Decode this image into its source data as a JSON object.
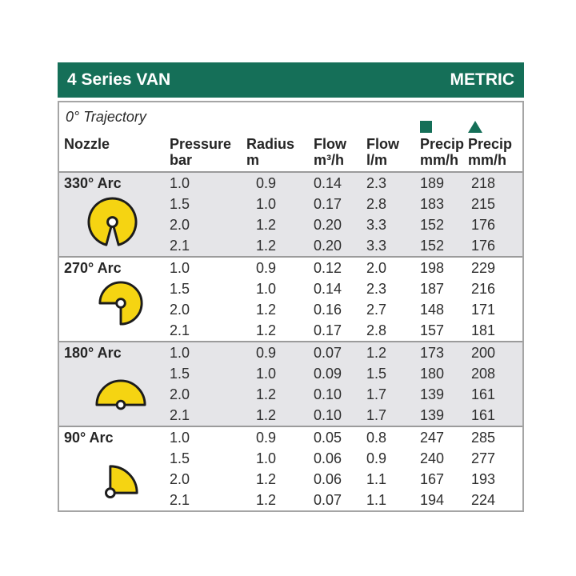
{
  "banner": {
    "title": "4 Series VAN",
    "badge": "METRIC"
  },
  "header": {
    "trajectory": "0° Trajectory",
    "columns": [
      {
        "label": "Nozzle",
        "unit": ""
      },
      {
        "label": "Pressure",
        "unit": "bar"
      },
      {
        "label": "Radius",
        "unit": "m"
      },
      {
        "label": "Flow",
        "unit": "m³/h"
      },
      {
        "label": "Flow",
        "unit": "l/m"
      },
      {
        "label": "Precip",
        "unit": "mm/h",
        "icon": "square"
      },
      {
        "label": "Precip",
        "unit": "mm/h",
        "icon": "triangle"
      }
    ]
  },
  "sections": [
    {
      "arc_label": "330° Arc",
      "icon": "arc-330",
      "rows": [
        [
          "1.0",
          "0.9",
          "0.14",
          "2.3",
          "189",
          "218"
        ],
        [
          "1.5",
          "1.0",
          "0.17",
          "2.8",
          "183",
          "215"
        ],
        [
          "2.0",
          "1.2",
          "0.20",
          "3.3",
          "152",
          "176"
        ],
        [
          "2.1",
          "1.2",
          "0.20",
          "3.3",
          "152",
          "176"
        ]
      ]
    },
    {
      "arc_label": "270° Arc",
      "icon": "arc-270",
      "rows": [
        [
          "1.0",
          "0.9",
          "0.12",
          "2.0",
          "198",
          "229"
        ],
        [
          "1.5",
          "1.0",
          "0.14",
          "2.3",
          "187",
          "216"
        ],
        [
          "2.0",
          "1.2",
          "0.16",
          "2.7",
          "148",
          "171"
        ],
        [
          "2.1",
          "1.2",
          "0.17",
          "2.8",
          "157",
          "181"
        ]
      ]
    },
    {
      "arc_label": "180° Arc",
      "icon": "arc-180",
      "rows": [
        [
          "1.0",
          "0.9",
          "0.07",
          "1.2",
          "173",
          "200"
        ],
        [
          "1.5",
          "1.0",
          "0.09",
          "1.5",
          "180",
          "208"
        ],
        [
          "2.0",
          "1.2",
          "0.10",
          "1.7",
          "139",
          "161"
        ],
        [
          "2.1",
          "1.2",
          "0.10",
          "1.7",
          "139",
          "161"
        ]
      ]
    },
    {
      "arc_label": "90° Arc",
      "icon": "arc-90",
      "rows": [
        [
          "1.0",
          "0.9",
          "0.05",
          "0.8",
          "247",
          "285"
        ],
        [
          "1.5",
          "1.0",
          "0.06",
          "0.9",
          "240",
          "277"
        ],
        [
          "2.0",
          "1.2",
          "0.06",
          "1.1",
          "167",
          "193"
        ],
        [
          "2.1",
          "1.2",
          "0.07",
          "1.1",
          "194",
          "224"
        ]
      ]
    }
  ],
  "colors": {
    "brand_green": "#156F58",
    "row_gray": "#E5E5E8",
    "nozzle_yellow": "#F5D412",
    "border_gray": "#A5A5A5",
    "separator_gray": "#9B9B9B"
  }
}
